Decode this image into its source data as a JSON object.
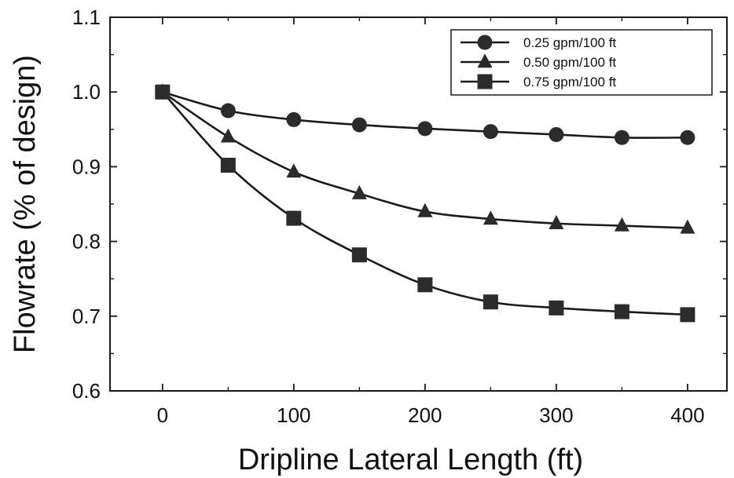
{
  "chart_data": {
    "type": "line",
    "xlabel": "Dripline Lateral Length (ft)",
    "ylabel": "Flowrate (% of design)",
    "xlim": [
      -40,
      430
    ],
    "ylim": [
      0.6,
      1.1
    ],
    "xticks": [
      0,
      100,
      200,
      300,
      400
    ],
    "xtick_labels": [
      "0",
      "100",
      "200",
      "300",
      "400"
    ],
    "yticks": [
      0.6,
      0.7,
      0.8,
      0.9,
      1.0,
      1.1
    ],
    "ytick_labels": [
      "0.6",
      "0.7",
      "0.8",
      "0.9",
      "1.0",
      "1.1"
    ],
    "legend_position": "top-right",
    "grid": false,
    "x": [
      0,
      50,
      100,
      150,
      200,
      250,
      300,
      350,
      400
    ],
    "series": [
      {
        "name": "0.25 gpm/100 ft",
        "marker": "circle",
        "values": [
          1.0,
          0.975,
          0.963,
          0.956,
          0.951,
          0.947,
          0.943,
          0.939,
          0.939
        ]
      },
      {
        "name": "0.50 gpm/100 ft",
        "marker": "triangle",
        "values": [
          1.0,
          0.94,
          0.893,
          0.864,
          0.84,
          0.83,
          0.824,
          0.821,
          0.818
        ]
      },
      {
        "name": "0.75 gpm/100 ft",
        "marker": "square",
        "values": [
          1.0,
          0.902,
          0.831,
          0.782,
          0.742,
          0.719,
          0.711,
          0.706,
          0.702
        ]
      }
    ],
    "colors": {
      "line": "#1a1a1a",
      "marker": "#2b2b2b",
      "background": "#ffffff"
    }
  }
}
